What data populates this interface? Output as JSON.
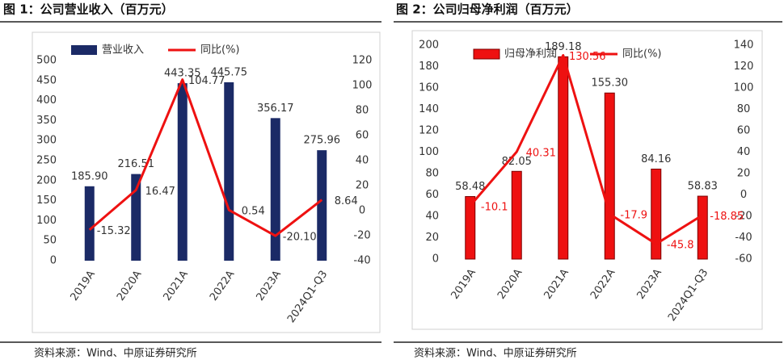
{
  "chart_data": [
    {
      "type": "combo",
      "title": "图 1：公司营业收入（百万元）",
      "source": "资料来源：Wind、中原证券研究所",
      "categories": [
        "2019A",
        "2020A",
        "2021A",
        "2022A",
        "2023A",
        "2024Q1-Q3"
      ],
      "series": [
        {
          "name": "营业收入",
          "type": "bar",
          "color": "#1b2a66",
          "values": [
            185.9,
            216.51,
            443.35,
            445.75,
            356.17,
            275.96
          ],
          "value_labels": [
            "185.90",
            "216.51",
            "443.35",
            "445.75",
            "356.17",
            "275.96"
          ]
        },
        {
          "name": "同比(%)",
          "type": "line",
          "axis": "y2",
          "color": "#ee1111",
          "label_color": "#333333",
          "values": [
            -15.32,
            16.47,
            104.77,
            0.54,
            -20.1,
            8.64
          ],
          "value_labels": [
            "-15.32",
            "16.47",
            "104.77",
            "0.54",
            "-20.10",
            "8.64"
          ]
        }
      ],
      "ylim": [
        0,
        500
      ],
      "yticks": [
        0,
        50,
        100,
        150,
        200,
        250,
        300,
        350,
        400,
        450,
        500
      ],
      "y2lim": [
        -40,
        120
      ],
      "y2ticks": [
        -40,
        -20,
        0,
        20,
        40,
        60,
        80,
        100,
        120
      ]
    },
    {
      "type": "combo",
      "title": "图 2：公司归母净利润（百万元）",
      "source": "资料来源：Wind、中原证券研究所",
      "categories": [
        "2019A",
        "2020A",
        "2021A",
        "2022A",
        "2023A",
        "2024Q1-Q3"
      ],
      "series": [
        {
          "name": "归母净利润",
          "type": "bar",
          "color": "#ee1111",
          "values": [
            58.48,
            82.05,
            189.18,
            155.3,
            84.16,
            58.83
          ],
          "value_labels": [
            "58.48",
            "82.05",
            "189.18",
            "155.30",
            "84.16",
            "58.83"
          ]
        },
        {
          "name": "同比(%)",
          "type": "line",
          "axis": "y2",
          "color": "#ee1111",
          "label_color": "#ee1111",
          "values": [
            -10.1,
            40.31,
            130.56,
            -17.9,
            -45.8,
            -18.85
          ],
          "value_labels": [
            "-10.1",
            "40.31",
            "130.56",
            "-17.9",
            "-45.8",
            "-18.85"
          ]
        }
      ],
      "ylim": [
        0,
        200
      ],
      "yticks": [
        0,
        20,
        40,
        60,
        80,
        100,
        120,
        140,
        160,
        180,
        200
      ],
      "y2lim": [
        -60,
        140
      ],
      "y2ticks": [
        -60,
        -40,
        -20,
        0,
        20,
        40,
        60,
        80,
        100,
        120,
        140
      ]
    }
  ]
}
